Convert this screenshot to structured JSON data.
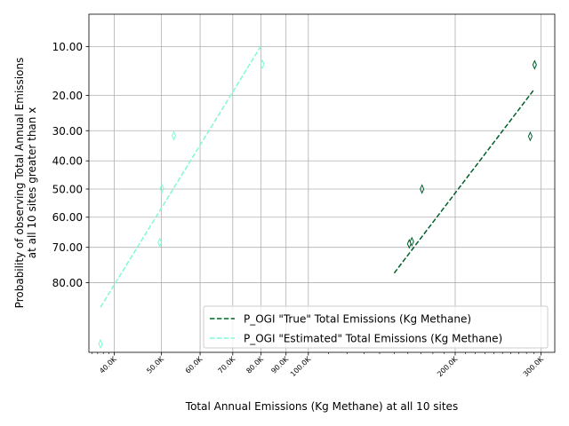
{
  "chart_data": {
    "type": "scatter",
    "xlabel": "Total Annual Emissions (Kg Methane) at all 10 sites",
    "ylabel_lines": [
      "Probability of observing Total Annual Emissions",
      "at all 10 sites greater than x"
    ],
    "x_scale": "log",
    "y_scale": "probit",
    "xlim": [
      35500,
      320000
    ],
    "ylim_percent": [
      5.8,
      92.9
    ],
    "x_ticks": [
      {
        "value": 40000,
        "label": "40.0K"
      },
      {
        "value": 50000,
        "label": "50.0K"
      },
      {
        "value": 60000,
        "label": "60.0K"
      },
      {
        "value": 70000,
        "label": "70.0K"
      },
      {
        "value": 80000,
        "label": "80.0K"
      },
      {
        "value": 90000,
        "label": "90.0K"
      },
      {
        "value": 100000,
        "label": "100.0K"
      },
      {
        "value": 200000,
        "label": "200.0K"
      },
      {
        "value": 300000,
        "label": "300.0K"
      }
    ],
    "y_ticks": [
      {
        "value": 10,
        "label": "10.00"
      },
      {
        "value": 20,
        "label": "20.00"
      },
      {
        "value": 30,
        "label": "30.00"
      },
      {
        "value": 40,
        "label": "40.00"
      },
      {
        "value": 50,
        "label": "50.00"
      },
      {
        "value": 60,
        "label": "60.00"
      },
      {
        "value": 70,
        "label": "70.00"
      },
      {
        "value": 80,
        "label": "80.00"
      }
    ],
    "grid": true,
    "legend_position": "lower-right",
    "series": [
      {
        "name": "P_OGI \"True\" Total Emissions (Kg Methane)",
        "color": "#00602b",
        "points": [
          {
            "x": 171000,
            "y": 50
          },
          {
            "x": 163000,
            "y": 68.2
          },
          {
            "x": 161000,
            "y": 68.9
          },
          {
            "x": 285000,
            "y": 31.8
          },
          {
            "x": 291000,
            "y": 13.2
          }
        ],
        "fit_line": [
          {
            "x": 150000,
            "y": 77.5
          },
          {
            "x": 290000,
            "y": 18.6
          }
        ]
      },
      {
        "name": "P_OGI \"Estimated\" Total Emissions (Kg Methane)",
        "color": "#7ff9d6",
        "points": [
          {
            "x": 37500,
            "y": 91.8
          },
          {
            "x": 49600,
            "y": 68.5
          },
          {
            "x": 50100,
            "y": 49.8
          },
          {
            "x": 53000,
            "y": 31.6
          },
          {
            "x": 80500,
            "y": 13.1
          }
        ],
        "fit_line": [
          {
            "x": 37500,
            "y": 85.6
          },
          {
            "x": 80000,
            "y": 9.9
          }
        ]
      }
    ]
  }
}
